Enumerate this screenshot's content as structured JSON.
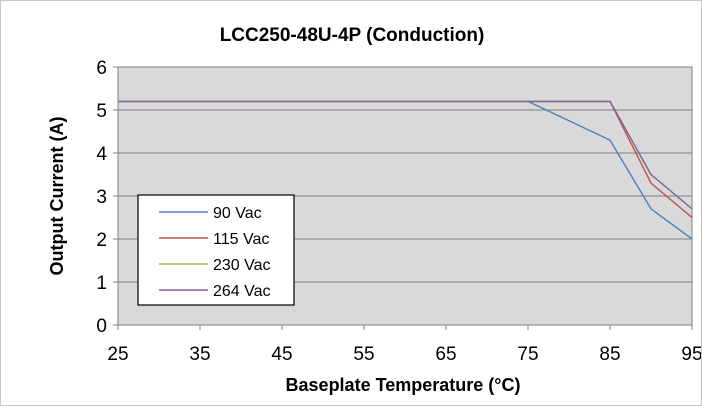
{
  "chart_data": {
    "type": "line",
    "title": "LCC250-48U-4P (Conduction)",
    "xlabel": "Baseplate Temperature (°C)",
    "ylabel": "Output Current (A)",
    "xlim": [
      25,
      95
    ],
    "ylim": [
      0,
      6
    ],
    "x_ticks": [
      "25",
      "35",
      "45",
      "55",
      "65",
      "75",
      "85",
      "95"
    ],
    "y_ticks": [
      "0",
      "1",
      "2",
      "3",
      "4",
      "5",
      "6"
    ],
    "grid": "horizontal",
    "legend_position": "bottom-left",
    "series": [
      {
        "name": "90 Vac",
        "color": "#4F81BD",
        "points": [
          [
            25,
            5.2
          ],
          [
            75,
            5.2
          ],
          [
            85,
            4.3
          ],
          [
            90,
            2.7
          ],
          [
            95,
            2.0
          ]
        ]
      },
      {
        "name": "115 Vac",
        "color": "#C0504D",
        "points": [
          [
            25,
            5.2
          ],
          [
            85,
            5.2
          ],
          [
            90,
            3.3
          ],
          [
            95,
            2.5
          ]
        ]
      },
      {
        "name": "230 Vac",
        "color": "#9BBB59",
        "points": [
          [
            25,
            5.2
          ],
          [
            85,
            5.2
          ],
          [
            90,
            3.5
          ],
          [
            95,
            2.7
          ]
        ]
      },
      {
        "name": "264 Vac",
        "color": "#8064A2",
        "points": [
          [
            25,
            5.2
          ],
          [
            85,
            5.2
          ],
          [
            90,
            3.5
          ],
          [
            95,
            2.7
          ]
        ]
      }
    ]
  }
}
